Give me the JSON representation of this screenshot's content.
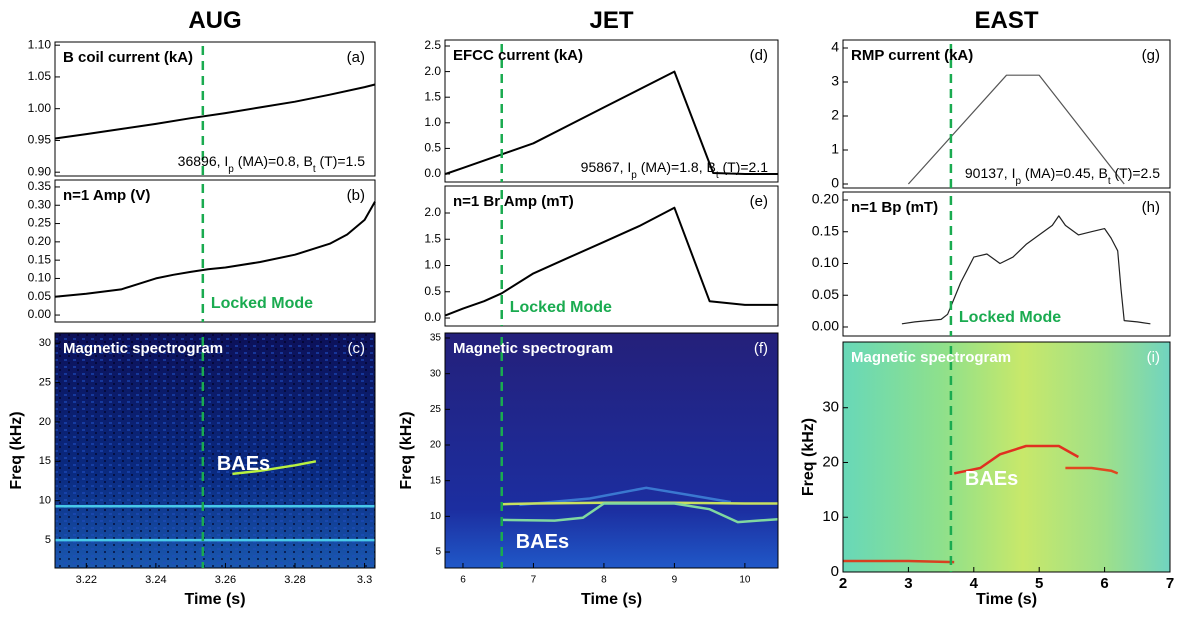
{
  "chart_data": [
    {
      "type": "line",
      "title": "AUG",
      "label": "B coil current (kA)",
      "panel": "(a)",
      "note": [
        "36896, I",
        "p",
        " (MA)=0.8, B",
        "t",
        " (T)=1.5"
      ],
      "x": [
        3.211,
        3.22,
        3.23,
        3.24,
        3.25,
        3.26,
        3.27,
        3.28,
        3.29,
        3.3,
        3.303
      ],
      "values": [
        0.953,
        0.96,
        0.968,
        0.976,
        0.985,
        0.993,
        1.002,
        1.011,
        1.022,
        1.034,
        1.038
      ],
      "color": "#000000",
      "xlim": [
        3.211,
        3.303
      ],
      "ylim": [
        0.894,
        1.105
      ],
      "yticks": [
        {
          "value": 0.9,
          "label": "0.90"
        },
        0.95,
        {
          "value": 1.0,
          "label": "1.00"
        },
        1.05,
        {
          "value": 1.1,
          "label": "1.10"
        }
      ],
      "vline": 3.2535
    },
    {
      "type": "line",
      "label": "n=1 Amp (V)",
      "panel": "(b)",
      "annotation": "Locked Mode",
      "x": [
        3.211,
        3.22,
        3.23,
        3.235,
        3.24,
        3.245,
        3.25,
        3.255,
        3.26,
        3.27,
        3.28,
        3.29,
        3.295,
        3.3,
        3.303
      ],
      "values": [
        0.05,
        0.058,
        0.07,
        0.085,
        0.1,
        0.11,
        0.118,
        0.125,
        0.13,
        0.145,
        0.165,
        0.195,
        0.22,
        0.26,
        0.31
      ],
      "color": "#000000",
      "xlim": [
        3.211,
        3.303
      ],
      "ylim": [
        -0.019,
        0.369
      ],
      "yticks": [
        {
          "value": 0.0,
          "label": "0.00"
        },
        0.05,
        {
          "value": 0.1,
          "label": "0.10"
        },
        0.15,
        {
          "value": 0.2,
          "label": "0.20"
        },
        0.25,
        {
          "value": 0.3,
          "label": "0.30"
        },
        0.35
      ],
      "vline": 3.2535
    },
    {
      "type": "spectrogram",
      "heading": "Magnetic spectrogram",
      "panel": "(c)",
      "annotation": "BAEs",
      "xlabel": "Time (s)",
      "ylabel": "Freq (kHz)",
      "series": [
        {
          "color": "#48c8e8",
          "x": [
            3.211,
            3.303
          ],
          "values": [
            5,
            5
          ]
        },
        {
          "color": "#48c8e8",
          "x": [
            3.211,
            3.303
          ],
          "values": [
            9.3,
            9.3
          ]
        },
        {
          "color": "#b8f040",
          "x": [
            3.262,
            3.27,
            3.28,
            3.286
          ],
          "values": [
            13.4,
            13.8,
            14.5,
            15.0
          ]
        }
      ],
      "xlim": [
        3.211,
        3.303
      ],
      "ylim": [
        1.45,
        31.3
      ],
      "xticks": [
        3.22,
        3.24,
        3.26,
        3.28,
        3.3
      ],
      "yticks": [
        5,
        10,
        15,
        20,
        25,
        30
      ],
      "vline": 3.2535
    },
    {
      "type": "line",
      "title": "JET",
      "label": "EFCC current (kA)",
      "panel": "(d)",
      "note": [
        "95867, I",
        "p",
        " (MA)=1.8, B",
        "t",
        " (T)=2.1"
      ],
      "x": [
        5.75,
        6,
        7,
        8,
        9,
        9.55,
        10,
        10.47
      ],
      "values": [
        0.0,
        0.12,
        0.6,
        1.3,
        2.0,
        0.02,
        0.0,
        0.0
      ],
      "color": "#000000",
      "xlim": [
        5.745,
        10.47
      ],
      "ylim": [
        -0.156,
        2.617
      ],
      "yticks": [
        {
          "value": 0.0,
          "label": "0.0"
        },
        0.5,
        {
          "value": 1.0,
          "label": "1.0"
        },
        1.5,
        {
          "value": 2.0,
          "label": "2.0"
        },
        2.5
      ],
      "vline": 6.55
    },
    {
      "type": "line",
      "label": "n=1 Br Amp (mT)",
      "panel": "(e)",
      "annotation": "Locked Mode",
      "x": [
        5.75,
        6,
        6.3,
        6.55,
        7,
        7.5,
        8,
        8.5,
        9,
        9.5,
        10,
        10.47
      ],
      "values": [
        0.05,
        0.18,
        0.32,
        0.47,
        0.85,
        1.15,
        1.45,
        1.75,
        2.1,
        0.32,
        0.25,
        0.25
      ],
      "color": "#000000",
      "xlim": [
        5.745,
        10.47
      ],
      "ylim": [
        -0.152,
        2.514
      ],
      "yticks": [
        {
          "value": 0.0,
          "label": "0.0"
        },
        0.5,
        {
          "value": 1.0,
          "label": "1.0"
        },
        1.5,
        {
          "value": 2.0,
          "label": "2.0"
        }
      ],
      "vline": 6.55
    },
    {
      "type": "spectrogram",
      "heading": "Magnetic spectrogram",
      "panel": "(f)",
      "annotation": "BAEs",
      "xlabel": "Time (s)",
      "ylabel": "Freq (kHz)",
      "series": [
        {
          "color": "#3a78d0",
          "x": [
            6.8,
            7.8,
            8.6,
            9.2,
            9.8
          ],
          "values": [
            11.6,
            12.5,
            14.0,
            13.0,
            12.0
          ]
        },
        {
          "color": "#c8e060",
          "x": [
            6.55,
            7,
            8,
            9,
            10,
            10.47
          ],
          "values": [
            11.7,
            11.8,
            11.9,
            11.9,
            11.8,
            11.8
          ]
        },
        {
          "color": "#80d8a0",
          "x": [
            6.55,
            7.3,
            7.7,
            8,
            9,
            9.5,
            9.9,
            10.47
          ],
          "values": [
            9.5,
            9.4,
            9.8,
            11.8,
            11.8,
            11.0,
            9.2,
            9.6
          ]
        }
      ],
      "xlim": [
        5.745,
        10.47
      ],
      "ylim": [
        2.76,
        35.7
      ],
      "xticks": [
        6,
        7,
        8,
        9,
        10
      ],
      "yticks": [
        5,
        10,
        15,
        20,
        25,
        30,
        35
      ],
      "vline": 6.55
    },
    {
      "type": "line",
      "title": "EAST",
      "label": "RMP current (kA)",
      "panel": "(g)",
      "note": [
        "90137, I",
        "p",
        " (MA)=0.45, B",
        "t",
        " (T)=2.5"
      ],
      "x": [
        3.0,
        4.5,
        5.0,
        6.3
      ],
      "values": [
        0.0,
        3.2,
        3.2,
        0.0
      ],
      "color": "#555555",
      "xlim": [
        2,
        7
      ],
      "ylim": [
        -0.118,
        4.235
      ],
      "yticks": [
        0,
        1,
        2,
        3,
        4
      ],
      "vline": 3.65
    },
    {
      "type": "line",
      "label": "n=1 Bp (mT)",
      "panel": "(h)",
      "annotation": "Locked Mode",
      "x": [
        2.9,
        3.1,
        3.3,
        3.5,
        3.6,
        3.7,
        3.8,
        3.9,
        4.0,
        4.2,
        4.4,
        4.6,
        4.8,
        5.0,
        5.2,
        5.3,
        5.4,
        5.6,
        5.8,
        6.0,
        6.1,
        6.2,
        6.25,
        6.3,
        6.5,
        6.7
      ],
      "values": [
        0.005,
        0.008,
        0.01,
        0.012,
        0.02,
        0.045,
        0.07,
        0.09,
        0.11,
        0.115,
        0.1,
        0.11,
        0.13,
        0.145,
        0.16,
        0.175,
        0.16,
        0.145,
        0.15,
        0.155,
        0.14,
        0.12,
        0.06,
        0.01,
        0.008,
        0.005
      ],
      "color": "#222222",
      "xlim": [
        2,
        7
      ],
      "ylim": [
        -0.0142,
        0.2126
      ],
      "yticks": [
        {
          "value": 0.0,
          "label": "0.00"
        },
        0.05,
        {
          "value": 0.1,
          "label": "0.10"
        },
        0.15,
        {
          "value": 0.2,
          "label": "0.20"
        }
      ],
      "vline": 3.65
    },
    {
      "type": "spectrogram",
      "heading": "Magnetic spectrogram",
      "panel": "(i)",
      "annotation": "BAEs",
      "xlabel": "Time (s)",
      "ylabel": "Freq (kHz)",
      "series": [
        {
          "color": "#d84020",
          "x": [
            2,
            3.0,
            3.7
          ],
          "values": [
            2,
            2,
            1.8
          ]
        },
        {
          "color": "#e03020",
          "x": [
            3.7,
            3.9,
            4.1,
            4.4,
            4.8,
            5.3,
            5.6
          ],
          "values": [
            18,
            18.5,
            19,
            21.5,
            23,
            23,
            21
          ]
        },
        {
          "color": "#e04820",
          "x": [
            5.4,
            5.8,
            6.1,
            6.2
          ],
          "values": [
            19,
            19,
            18.5,
            18
          ]
        }
      ],
      "xlim": [
        2,
        7
      ],
      "ylim": [
        0,
        42
      ],
      "xticks": [
        2,
        3,
        4,
        5,
        6,
        7
      ],
      "yticks": [
        0,
        10,
        20,
        30
      ],
      "vline": 3.65
    }
  ]
}
